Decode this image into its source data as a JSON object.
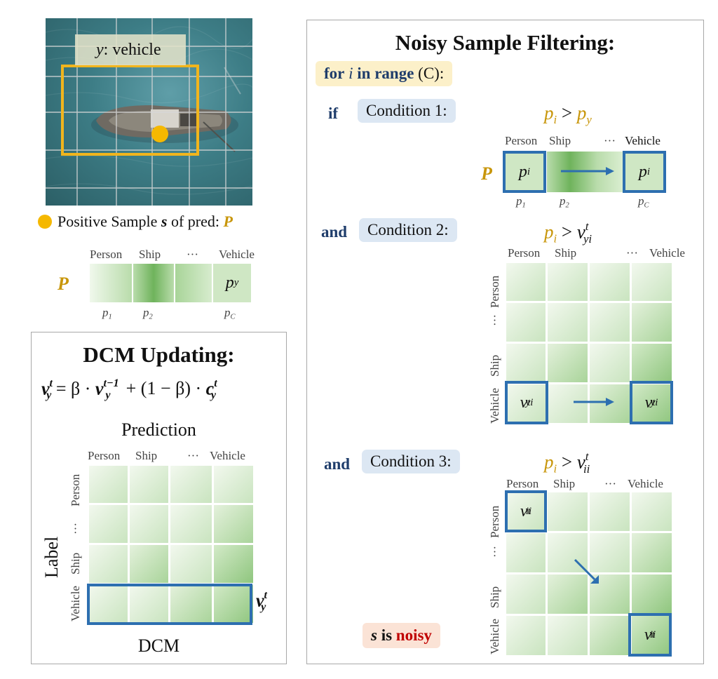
{
  "image_label": {
    "var": "y",
    "text": ": vehicle"
  },
  "positive_sample": {
    "prefix": "Positive Sample ",
    "s": "s",
    "mid": " of pred: ",
    "P": "P"
  },
  "categories": [
    "Person",
    "Ship",
    "···",
    "Vehicle"
  ],
  "vector": {
    "P": "P",
    "py_base": "p",
    "py_sub": "y",
    "p1": [
      "p",
      "1"
    ],
    "p2": [
      "p",
      "2"
    ],
    "pC": [
      "p",
      "C"
    ]
  },
  "dcm": {
    "title": "DCM Updating:",
    "formula": [
      "v",
      "t",
      "y",
      " = β · ",
      "v",
      "t−1",
      "y",
      " + (1 − β) · ",
      "c",
      "t",
      "y"
    ],
    "prediction": "Prediction",
    "label": "Label",
    "footer": "DCM",
    "row_labels": [
      "Person",
      "···",
      "Ship",
      "Vehicle"
    ],
    "vy": [
      "v",
      "t",
      "y"
    ]
  },
  "filter": {
    "title": "Noisy Sample Filtering:",
    "loop": {
      "for": "for",
      "i": "i",
      "in_range": "in range",
      "rest": "(C):"
    },
    "if": "if",
    "and": "and",
    "conditions": [
      "Condition 1:",
      "Condition 2:",
      "Condition 3:"
    ],
    "cond1_expr": [
      "p",
      "i",
      " > ",
      "p",
      "y"
    ],
    "cond2_expr": [
      "p",
      "i",
      " > ",
      "v",
      "t",
      "yi"
    ],
    "cond3_expr": [
      "p",
      "i",
      " > ",
      "v",
      "t",
      "ii"
    ],
    "pi": [
      "p",
      "i"
    ],
    "vyi": [
      "v",
      "t",
      "yi"
    ],
    "vii": [
      "v",
      "t",
      "ii"
    ],
    "result": {
      "s": "s",
      "is": " is ",
      "noisy": "noisy"
    }
  },
  "colors": {
    "gold": "#c8960a",
    "navy": "#1f3d6b",
    "blue_box": "#2d6fb0",
    "noisy": "#c00000",
    "green_dark": "#8fc67e"
  }
}
